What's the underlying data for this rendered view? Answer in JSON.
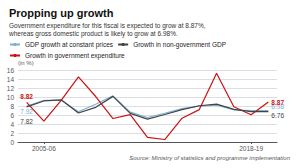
{
  "chart_data": {
    "type": "line",
    "title": "Propping up growth",
    "subtitle": "Government expenditure for this fiscal is expected to grow at 8.87%,\nwhereas gross domestic product is likely to grow at 6.98%.",
    "source": "Source: Ministry of statistics and programme implementation",
    "ylabel": "(in %)",
    "categories": [
      null,
      "2005-06",
      null,
      null,
      null,
      null,
      null,
      null,
      null,
      null,
      null,
      null,
      null,
      "2018-19",
      null
    ],
    "series": [
      {
        "name": "GDP growth at constant prices",
        "color": "#7bafd4",
        "values": [
          7.92,
          9.28,
          9.26,
          6.72,
          8.4,
          10.26,
          6.64,
          5.45,
          6.39,
          7.41,
          7.99,
          8.17,
          7.16,
          6.98,
          6.98
        ],
        "annotations": [
          {
            "text": "7.92",
            "x": 0,
            "y": 7.92
          },
          {
            "text": "6.98",
            "x": 14,
            "y": 6.98
          }
        ]
      },
      {
        "name": "Growth in non-government GDP",
        "color": "#444444",
        "values": [
          7.82,
          9.12,
          9.38,
          6.45,
          7.7,
          10.14,
          6.35,
          5.09,
          6.12,
          7.21,
          8.05,
          8.43,
          7.24,
          6.76,
          6.76
        ],
        "annotations": [
          {
            "text": "7.82",
            "x": 0,
            "y": 7.82
          },
          {
            "text": "6.76",
            "x": 14,
            "y": 6.76
          }
        ]
      },
      {
        "name": "Growth in government expenditure",
        "color": "#cc1111",
        "values": [
          8.82,
          4.62,
          9.23,
          14.45,
          10.11,
          5.22,
          6.1,
          1.01,
          0.55,
          5.29,
          7.2,
          15.3,
          7.85,
          6.05,
          8.87
        ],
        "annotations": [
          {
            "text": "8.82",
            "x": 0,
            "y": 8.82
          },
          {
            "text": "8.87",
            "x": 14,
            "y": 8.87
          }
        ]
      }
    ],
    "ylim": [
      0,
      16
    ],
    "yticks": [
      0,
      2,
      4,
      6,
      8,
      10,
      12,
      14,
      16
    ],
    "grid": true
  }
}
